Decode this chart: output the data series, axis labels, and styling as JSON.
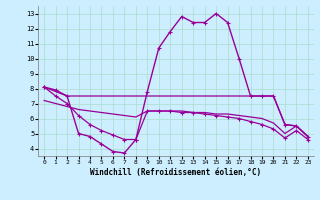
{
  "xlabel": "Windchill (Refroidissement éolien,°C)",
  "background_color": "#cceeff",
  "grid_color": "#aaddcc",
  "line_color": "#990099",
  "xlim": [
    -0.5,
    23.5
  ],
  "ylim": [
    3.5,
    13.5
  ],
  "yticks": [
    4,
    5,
    6,
    7,
    8,
    9,
    10,
    11,
    12,
    13
  ],
  "xticks": [
    0,
    1,
    2,
    3,
    4,
    5,
    6,
    7,
    8,
    9,
    10,
    11,
    12,
    13,
    14,
    15,
    16,
    17,
    18,
    19,
    20,
    21,
    22,
    23
  ],
  "series": [
    {
      "x": [
        0,
        1,
        2,
        3,
        4,
        5,
        6,
        7,
        8,
        9,
        10,
        11,
        12,
        13,
        14,
        15,
        16,
        17,
        18,
        19,
        20,
        21,
        22,
        23
      ],
      "y": [
        8.1,
        7.9,
        7.5,
        5.0,
        4.8,
        4.3,
        3.8,
        3.7,
        4.6,
        7.8,
        10.7,
        11.8,
        12.8,
        12.4,
        12.4,
        13.0,
        12.4,
        10.0,
        7.5,
        7.5,
        7.5,
        5.6,
        5.5,
        4.8
      ],
      "marker": "+",
      "lw": 1.0
    },
    {
      "x": [
        0,
        1,
        2,
        3,
        4,
        5,
        6,
        7,
        8,
        9,
        10,
        11,
        12,
        13,
        14,
        15,
        16,
        17,
        18,
        19,
        20,
        21,
        22,
        23
      ],
      "y": [
        8.1,
        7.8,
        7.5,
        7.5,
        7.5,
        7.5,
        7.5,
        7.5,
        7.5,
        7.5,
        7.5,
        7.5,
        7.5,
        7.5,
        7.5,
        7.5,
        7.5,
        7.5,
        7.5,
        7.5,
        7.5,
        5.6,
        5.5,
        4.8
      ],
      "marker": null,
      "lw": 0.9
    },
    {
      "x": [
        0,
        1,
        2,
        3,
        4,
        5,
        6,
        7,
        8,
        9,
        10,
        11,
        12,
        13,
        14,
        15,
        16,
        17,
        18,
        19,
        20,
        21,
        22,
        23
      ],
      "y": [
        7.2,
        7.0,
        6.8,
        6.6,
        6.5,
        6.4,
        6.3,
        6.2,
        6.1,
        6.5,
        6.5,
        6.5,
        6.5,
        6.4,
        6.4,
        6.3,
        6.3,
        6.2,
        6.1,
        6.0,
        5.7,
        5.0,
        5.5,
        4.8
      ],
      "marker": null,
      "lw": 0.9
    },
    {
      "x": [
        0,
        1,
        2,
        3,
        4,
        5,
        6,
        7,
        8,
        9,
        10,
        11,
        12,
        13,
        14,
        15,
        16,
        17,
        18,
        19,
        20,
        21,
        22,
        23
      ],
      "y": [
        8.1,
        7.5,
        7.0,
        6.2,
        5.6,
        5.2,
        4.9,
        4.6,
        4.6,
        6.5,
        6.5,
        6.5,
        6.4,
        6.4,
        6.3,
        6.2,
        6.1,
        6.0,
        5.8,
        5.6,
        5.3,
        4.7,
        5.2,
        4.6
      ],
      "marker": "+",
      "lw": 0.9
    }
  ]
}
